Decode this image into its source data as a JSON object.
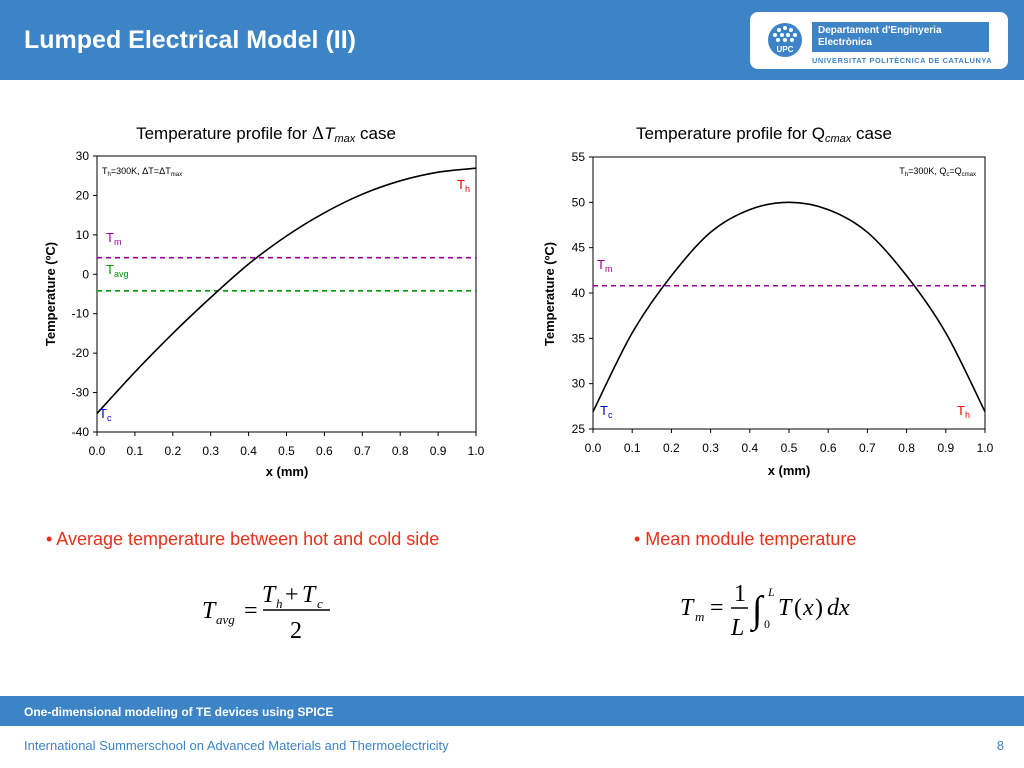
{
  "slide": {
    "title": "Lumped Electrical Model (II)",
    "page_number": "8",
    "footer_band": "One-dimensional modeling of TE devices using SPICE",
    "footer": "International Summerschool on Advanced Materials and Thermoelectricity"
  },
  "logo": {
    "line1": "Departament d'Enginyeria",
    "line2": "Electrònica",
    "university": "UNIVERSITAT POLITÈCNICA DE CATALUNYA",
    "seal": "UPC"
  },
  "colors": {
    "header": "#3d84c6",
    "bullet": "#e8301a",
    "tm_line": "#990099",
    "tavg_line": "#009900",
    "tc_label": "#0000cc",
    "th_label": "#ff0000"
  },
  "bullets": {
    "left": "• Average temperature between hot and cold side",
    "right": "• Mean module temperature"
  },
  "formulas": {
    "left": "T_avg = (T_h + T_c) / 2",
    "right": "T_m = (1/L) ∫_0^L T(x) dx"
  },
  "chart_data": [
    {
      "type": "line",
      "title": "Temperature profile for ΔTmax case",
      "xlabel": "x (mm)",
      "ylabel": "Temperature (ºC)",
      "xlim": [
        0,
        1
      ],
      "ylim": [
        -40,
        30
      ],
      "x_ticks": [
        "0.0",
        "0.1",
        "0.2",
        "0.3",
        "0.4",
        "0.5",
        "0.6",
        "0.7",
        "0.8",
        "0.9",
        "1.0"
      ],
      "y_ticks": [
        "30",
        "20",
        "10",
        "0",
        "-10",
        "-20",
        "-30",
        "-40"
      ],
      "annotation": "Th=300K, ΔT=ΔTmax",
      "labels": {
        "th": "Th",
        "tc": "Tc",
        "tm": "Tm",
        "tavg": "Tavg"
      },
      "series": [
        {
          "x": [
            0,
            0.1,
            0.2,
            0.3,
            0.4,
            0.5,
            0.6,
            0.7,
            0.8,
            0.9,
            1.0
          ],
          "y": [
            -35.3,
            -24.8,
            -15.0,
            -5.9,
            2.6,
            9.7,
            15.6,
            20.3,
            23.7,
            25.9,
            26.9
          ]
        }
      ],
      "hlines": [
        {
          "key": "tm",
          "y": 4.2
        },
        {
          "key": "tavg",
          "y": -4.2
        }
      ],
      "grid": false
    },
    {
      "type": "line",
      "title": "Temperature profile for Qcmax case",
      "xlabel": "x (mm)",
      "ylabel": "Temperature (ºC)",
      "xlim": [
        0,
        1
      ],
      "ylim": [
        25,
        55
      ],
      "x_ticks": [
        "0.0",
        "0.1",
        "0.2",
        "0.3",
        "0.4",
        "0.5",
        "0.6",
        "0.7",
        "0.8",
        "0.9",
        "1.0"
      ],
      "y_ticks": [
        "55",
        "50",
        "45",
        "40",
        "35",
        "30",
        "25"
      ],
      "annotation": "Th=300K, Qc=Qcmax",
      "labels": {
        "th": "Th",
        "tc": "Tc",
        "tm": "Tm"
      },
      "series": [
        {
          "x": [
            0,
            0.1,
            0.2,
            0.3,
            0.4,
            0.5,
            0.6,
            0.7,
            0.8,
            0.9,
            1.0
          ],
          "y": [
            26.9,
            35.6,
            41.9,
            46.7,
            49.2,
            50.0,
            49.2,
            46.7,
            41.9,
            35.6,
            26.9
          ]
        }
      ],
      "hlines": [
        {
          "key": "tm",
          "y": 40.8
        }
      ],
      "grid": false
    }
  ]
}
